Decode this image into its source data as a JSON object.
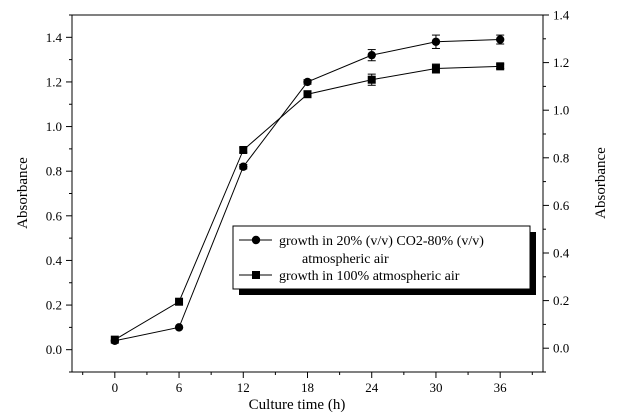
{
  "chart_data": {
    "type": "line",
    "xlabel": "Culture time (h)",
    "ylabel_left": "Absorbance",
    "ylabel_right": "Absorbance",
    "x": [
      0,
      6,
      12,
      18,
      24,
      30,
      36
    ],
    "xlim": [
      -4,
      40
    ],
    "ylim_left": [
      -0.1,
      1.5
    ],
    "ylim_right": [
      -0.1,
      1.4
    ],
    "xticks": [
      "0",
      "6",
      "12",
      "18",
      "24",
      "30",
      "36"
    ],
    "yticks_left": [
      "0.0",
      "0.2",
      "0.4",
      "0.6",
      "0.8",
      "1.0",
      "1.2",
      "1.4"
    ],
    "yticks_right": [
      "0.0",
      "0.2",
      "0.4",
      "0.6",
      "0.8",
      "1.0",
      "1.2",
      "1.4"
    ],
    "legend_position": "lower-right",
    "series": [
      {
        "name_line1": "growth in 20% (v/v) CO2-80% (v/v)",
        "name_line2": "atmospheric air",
        "marker": "circle",
        "values": [
          0.04,
          0.1,
          0.82,
          1.2,
          1.32,
          1.38,
          1.39
        ],
        "errors": [
          0,
          0,
          0.01,
          0.01,
          0.025,
          0.03,
          0.02
        ]
      },
      {
        "name": "growth in 100% atmospheric air",
        "marker": "square",
        "values": [
          0.045,
          0.215,
          0.895,
          1.145,
          1.21,
          1.26,
          1.27
        ],
        "errors": [
          0,
          0,
          0.01,
          0.01,
          0.025,
          0.02,
          0.01
        ]
      }
    ],
    "grid": false
  }
}
